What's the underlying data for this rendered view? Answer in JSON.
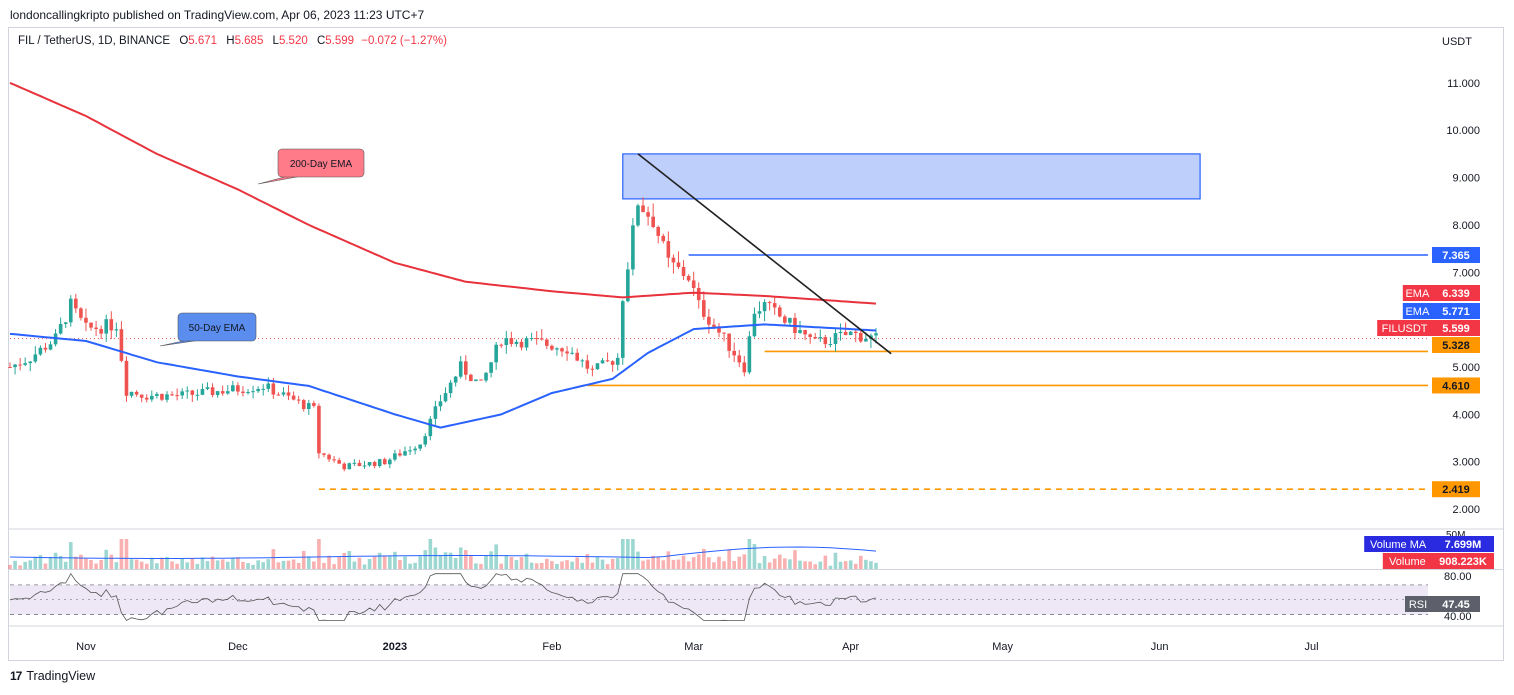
{
  "header": {
    "published": "londoncallingkripto published on TradingView.com, Apr 06, 2023 11:23 UTC+7"
  },
  "legend": {
    "symbol": "FIL / TetherUS, 1D, BINANCE",
    "open_label": "O",
    "open": "5.671",
    "high_label": "H",
    "high": "5.685",
    "low_label": "L",
    "low": "5.520",
    "close_label": "C",
    "close": "5.599",
    "change": "−0.072 (−1.27%)"
  },
  "footer": {
    "logo": "17",
    "brand": "TradingView"
  },
  "colors": {
    "up": "#26a69a",
    "down": "#ef5350",
    "ema200": "#e8323c",
    "ema50": "#2962ff",
    "orange": "#ff9800",
    "blue_line": "#2962ff",
    "zone_fill": "#b3c7fb",
    "rsi_band": "#ede7f6"
  },
  "chart_data": {
    "type": "candlestick",
    "symbol": "FIL / TetherUS",
    "interval": "1D",
    "exchange": "BINANCE",
    "currency": "USDT",
    "y_axis_label": "USDT",
    "y_ticks": [
      "11.000",
      "10.000",
      "9.000",
      "8.000",
      "7.000",
      "5.000",
      "4.000",
      "3.000",
      "2.000"
    ],
    "ylim": [
      1.6,
      11.8
    ],
    "x_ticks": [
      {
        "label": "Nov",
        "date": "2022-11-01"
      },
      {
        "label": "Dec",
        "date": "2022-12-01"
      },
      {
        "label": "2023",
        "date": "2023-01-01"
      },
      {
        "label": "Feb",
        "date": "2023-02-01"
      },
      {
        "label": "Mar",
        "date": "2023-03-01"
      },
      {
        "label": "Apr",
        "date": "2023-04-01"
      },
      {
        "label": "May",
        "date": "2023-05-01"
      },
      {
        "label": "Jun",
        "date": "2023-06-01"
      },
      {
        "label": "Jul",
        "date": "2023-07-01"
      }
    ],
    "xlim": [
      "2022-10-17",
      "2023-07-24"
    ],
    "candle_keypoints": [
      {
        "date": "2022-10-17",
        "close": 5.0
      },
      {
        "date": "2022-10-21",
        "close": 5.2
      },
      {
        "date": "2022-10-26",
        "close": 5.6
      },
      {
        "date": "2022-10-29",
        "close": 6.3
      },
      {
        "date": "2022-11-01",
        "close": 5.8
      },
      {
        "date": "2022-11-07",
        "close": 5.9
      },
      {
        "date": "2022-11-09",
        "close": 4.5
      },
      {
        "date": "2022-11-13",
        "close": 4.4
      },
      {
        "date": "2022-11-20",
        "close": 4.4
      },
      {
        "date": "2022-11-28",
        "close": 4.5
      },
      {
        "date": "2022-12-06",
        "close": 4.6
      },
      {
        "date": "2022-12-12",
        "close": 4.3
      },
      {
        "date": "2022-12-16",
        "close": 4.1
      },
      {
        "date": "2022-12-17",
        "close": 3.2
      },
      {
        "date": "2022-12-22",
        "close": 2.9
      },
      {
        "date": "2022-12-30",
        "close": 3.0
      },
      {
        "date": "2023-01-06",
        "close": 3.4
      },
      {
        "date": "2023-01-10",
        "close": 4.3
      },
      {
        "date": "2023-01-14",
        "close": 5.0
      },
      {
        "date": "2023-01-18",
        "close": 4.6
      },
      {
        "date": "2023-01-22",
        "close": 5.6
      },
      {
        "date": "2023-01-30",
        "close": 5.5
      },
      {
        "date": "2023-02-04",
        "close": 5.4
      },
      {
        "date": "2023-02-09",
        "close": 4.9
      },
      {
        "date": "2023-02-14",
        "close": 5.2
      },
      {
        "date": "2023-02-15",
        "close": 6.5
      },
      {
        "date": "2023-02-18",
        "close": 8.5
      },
      {
        "date": "2023-02-21",
        "close": 8.1
      },
      {
        "date": "2023-02-24",
        "close": 7.2
      },
      {
        "date": "2023-02-28",
        "close": 6.9
      },
      {
        "date": "2023-03-02",
        "close": 6.3
      },
      {
        "date": "2023-03-09",
        "close": 5.3
      },
      {
        "date": "2023-03-11",
        "close": 5.0
      },
      {
        "date": "2023-03-13",
        "close": 6.2
      },
      {
        "date": "2023-03-15",
        "close": 6.3
      },
      {
        "date": "2023-03-20",
        "close": 5.9
      },
      {
        "date": "2023-03-25",
        "close": 5.5
      },
      {
        "date": "2023-04-01",
        "close": 5.7
      },
      {
        "date": "2023-04-06",
        "close": 5.599
      }
    ],
    "ema_200": {
      "label": "EMA",
      "value": "6.339",
      "points": [
        {
          "date": "2022-10-17",
          "value": 11.0
        },
        {
          "date": "2022-11-01",
          "value": 10.3
        },
        {
          "date": "2022-11-15",
          "value": 9.5
        },
        {
          "date": "2022-12-01",
          "value": 8.75
        },
        {
          "date": "2022-12-15",
          "value": 8.0
        },
        {
          "date": "2023-01-01",
          "value": 7.2
        },
        {
          "date": "2023-01-15",
          "value": 6.8
        },
        {
          "date": "2023-02-01",
          "value": 6.6
        },
        {
          "date": "2023-02-15",
          "value": 6.47
        },
        {
          "date": "2023-03-01",
          "value": 6.57
        },
        {
          "date": "2023-03-15",
          "value": 6.5
        },
        {
          "date": "2023-04-06",
          "value": 6.339
        }
      ]
    },
    "ema_50": {
      "label": "EMA",
      "value": "5.771",
      "points": [
        {
          "date": "2022-10-17",
          "value": 5.7
        },
        {
          "date": "2022-11-01",
          "value": 5.55
        },
        {
          "date": "2022-11-15",
          "value": 5.1
        },
        {
          "date": "2022-12-01",
          "value": 4.8
        },
        {
          "date": "2022-12-15",
          "value": 4.6
        },
        {
          "date": "2023-01-01",
          "value": 4.0
        },
        {
          "date": "2023-01-10",
          "value": 3.72
        },
        {
          "date": "2023-01-22",
          "value": 4.0
        },
        {
          "date": "2023-02-01",
          "value": 4.45
        },
        {
          "date": "2023-02-13",
          "value": 4.75
        },
        {
          "date": "2023-02-20",
          "value": 5.3
        },
        {
          "date": "2023-03-01",
          "value": 5.8
        },
        {
          "date": "2023-03-15",
          "value": 5.9
        },
        {
          "date": "2023-04-06",
          "value": 5.771
        }
      ]
    },
    "last_price": {
      "label": "FILUSDT",
      "value": "5.599"
    },
    "levels": [
      {
        "value": "7.365",
        "from": "2023-02-28",
        "color": "#2962ff",
        "style": "solid"
      },
      {
        "value": "5.328",
        "from": "2023-03-15",
        "color": "#ff9800",
        "style": "solid"
      },
      {
        "value": "4.610",
        "from": "2023-02-08",
        "color": "#ff9800",
        "style": "solid"
      },
      {
        "value": "2.419",
        "from": "2022-12-17",
        "color": "#ff9800",
        "style": "dashed"
      }
    ],
    "supply_zone": {
      "from": "2023-02-15",
      "to": "2023-06-09",
      "top": 9.5,
      "bottom": 8.55
    },
    "trendline": {
      "from": {
        "date": "2023-02-18",
        "value": 9.5
      },
      "to": {
        "date": "2023-04-09",
        "value": 5.28
      }
    },
    "annotations": [
      {
        "text": "200-Day EMA",
        "color": "#ff7b89"
      },
      {
        "text": "50-Day EMA",
        "color": "#5b8def"
      }
    ],
    "volume": {
      "ma_label": "Volume MA",
      "ma_value": "7.699M",
      "label": "Volume",
      "value": "908.223K",
      "axis_label": "50M"
    },
    "rsi": {
      "label": "RSI",
      "value": "47.45",
      "upper_tick": "80.00",
      "lower_tick": "40.00",
      "upper_band": 70,
      "lower_band": 30,
      "ylim": [
        20,
        90
      ]
    }
  }
}
